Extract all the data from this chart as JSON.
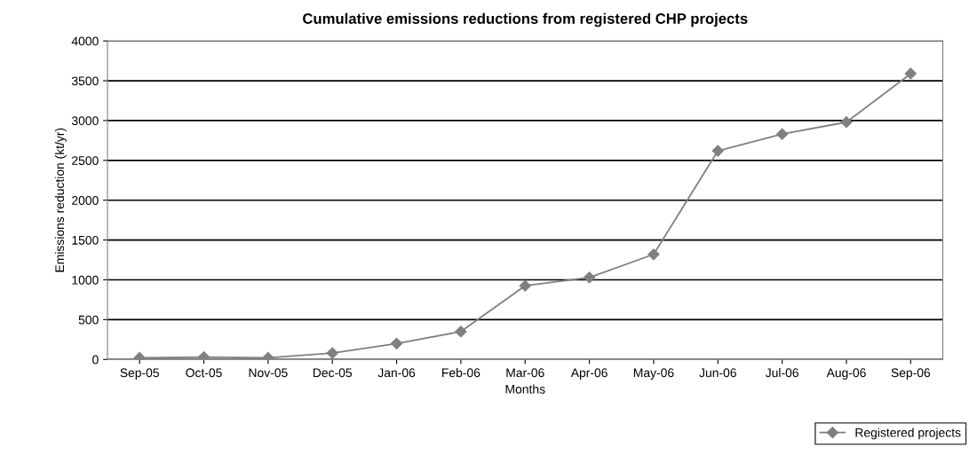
{
  "chart_data": {
    "type": "line",
    "title": "Cumulative emissions reductions from registered CHP projects",
    "xlabel": "Months",
    "ylabel": "Emissions reduction (kt/yr)",
    "categories": [
      "Sep-05",
      "Oct-05",
      "Nov-05",
      "Dec-05",
      "Jan-06",
      "Feb-06",
      "Mar-06",
      "Apr-06",
      "May-06",
      "Jun-06",
      "Jul-06",
      "Aug-06",
      "Sep-06"
    ],
    "series": [
      {
        "name": "Registered projects",
        "color": "#808080",
        "values": [
          20,
          30,
          20,
          80,
          200,
          350,
          925,
          1030,
          1320,
          2620,
          2830,
          2980,
          3590
        ]
      }
    ],
    "ylim": [
      0,
      4000
    ],
    "yticks": [
      0,
      500,
      1000,
      1500,
      2000,
      2500,
      3000,
      3500,
      4000
    ],
    "grid": "y",
    "legend": "bottom right",
    "marker": "diamond",
    "line_style": "solid"
  }
}
